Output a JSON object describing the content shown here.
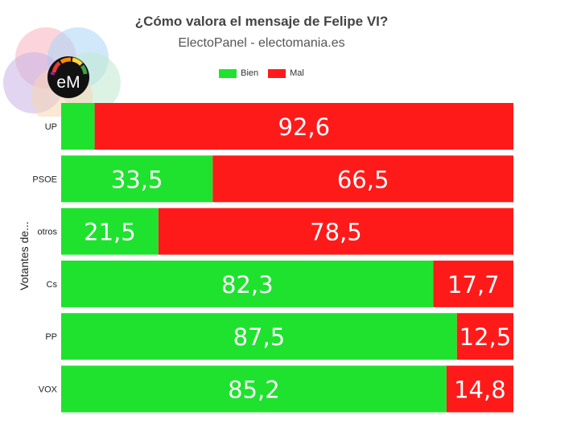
{
  "title": "¿Cómo valora el mensaje de Felipe VI?",
  "subtitle": "ElectoPanel - electomania.es",
  "logo_text": "eM",
  "chart_data": {
    "type": "bar",
    "orientation": "horizontal",
    "stacked": true,
    "title": "¿Cómo valora el mensaje de Felipe VI?",
    "subtitle": "ElectoPanel - electomania.es",
    "ylabel": "Votantes de...",
    "xlabel": "",
    "xlim": [
      0,
      100
    ],
    "legend_position": "top",
    "categories": [
      "UP",
      "PSOE",
      "otros",
      "Cs",
      "PP",
      "VOX"
    ],
    "series": [
      {
        "name": "Bien",
        "color": "#1fe22f",
        "values": [
          7.4,
          33.5,
          21.5,
          82.3,
          87.5,
          85.2
        ],
        "labels": [
          "",
          "33,5",
          "21,5",
          "82,3",
          "87,5",
          "85,2"
        ]
      },
      {
        "name": "Mal",
        "color": "#ff1a1a",
        "values": [
          92.6,
          66.5,
          78.5,
          17.7,
          12.5,
          14.8
        ],
        "labels": [
          "92,6",
          "66,5",
          "78,5",
          "17,7",
          "12,5",
          "14,8"
        ]
      }
    ]
  }
}
